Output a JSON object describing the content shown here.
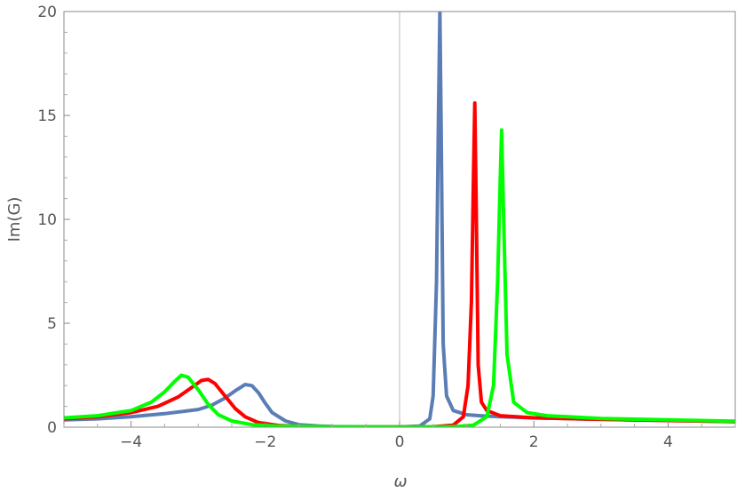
{
  "chart_data": {
    "type": "line",
    "title": "",
    "xlabel": "ω",
    "ylabel": "Im(G)",
    "xlim": [
      -5,
      5
    ],
    "ylim": [
      0,
      20
    ],
    "grid": false,
    "legend": "none",
    "x_ticks": [
      -4,
      -2,
      0,
      2,
      4
    ],
    "x_tick_labels": [
      "−4",
      "−2",
      "0",
      "2",
      "4"
    ],
    "y_ticks": [
      0,
      5,
      10,
      15,
      20
    ],
    "y_tick_labels": [
      "0",
      "5",
      "10",
      "15",
      "20"
    ],
    "series": [
      {
        "color": "#5b7db5",
        "x": [
          -5,
          -4.5,
          -4,
          -3.5,
          -3,
          -2.8,
          -2.6,
          -2.45,
          -2.3,
          -2.2,
          -2.1,
          -2.0,
          -1.9,
          -1.7,
          -1.5,
          -1.2,
          -1.0,
          -0.5,
          0,
          0.3,
          0.45,
          0.5,
          0.55,
          0.58,
          0.6,
          0.62,
          0.65,
          0.7,
          0.8,
          1.0,
          1.2,
          1.5,
          2,
          3,
          4,
          5
        ],
        "y": [
          0.35,
          0.4,
          0.5,
          0.65,
          0.85,
          1.05,
          1.4,
          1.75,
          2.05,
          2.0,
          1.65,
          1.15,
          0.7,
          0.3,
          0.12,
          0.05,
          0.03,
          0.02,
          0.01,
          0.05,
          0.4,
          1.5,
          7,
          15,
          20,
          14,
          4,
          1.5,
          0.8,
          0.6,
          0.55,
          0.5,
          0.45,
          0.38,
          0.32,
          0.27
        ]
      },
      {
        "color": "#ff0000",
        "x": [
          -5,
          -4.5,
          -4,
          -3.6,
          -3.3,
          -3.1,
          -2.95,
          -2.85,
          -2.75,
          -2.6,
          -2.45,
          -2.3,
          -2.1,
          -1.8,
          -1.5,
          -1.0,
          -0.5,
          0,
          0.5,
          0.8,
          0.95,
          1.02,
          1.07,
          1.1,
          1.12,
          1.14,
          1.17,
          1.22,
          1.3,
          1.5,
          2,
          3,
          4,
          5
        ],
        "y": [
          0.4,
          0.5,
          0.7,
          1.0,
          1.45,
          1.9,
          2.25,
          2.3,
          2.1,
          1.5,
          0.9,
          0.5,
          0.22,
          0.08,
          0.04,
          0.02,
          0.01,
          0.01,
          0.02,
          0.1,
          0.5,
          2,
          6,
          12,
          15.6,
          11,
          3,
          1.2,
          0.8,
          0.55,
          0.45,
          0.38,
          0.32,
          0.27
        ]
      },
      {
        "color": "#00ff00",
        "x": [
          -5,
          -4.5,
          -4,
          -3.7,
          -3.5,
          -3.35,
          -3.25,
          -3.15,
          -3.0,
          -2.85,
          -2.7,
          -2.5,
          -2.2,
          -1.8,
          -1.0,
          0,
          0.8,
          1.1,
          1.3,
          1.4,
          1.46,
          1.5,
          1.52,
          1.55,
          1.6,
          1.7,
          1.9,
          2.2,
          3,
          4,
          5
        ],
        "y": [
          0.45,
          0.55,
          0.8,
          1.2,
          1.7,
          2.2,
          2.5,
          2.4,
          1.8,
          1.1,
          0.6,
          0.3,
          0.12,
          0.05,
          0.02,
          0.01,
          0.02,
          0.1,
          0.5,
          2,
          7,
          12,
          14.3,
          10,
          3.5,
          1.2,
          0.7,
          0.55,
          0.42,
          0.35,
          0.29
        ]
      }
    ]
  }
}
